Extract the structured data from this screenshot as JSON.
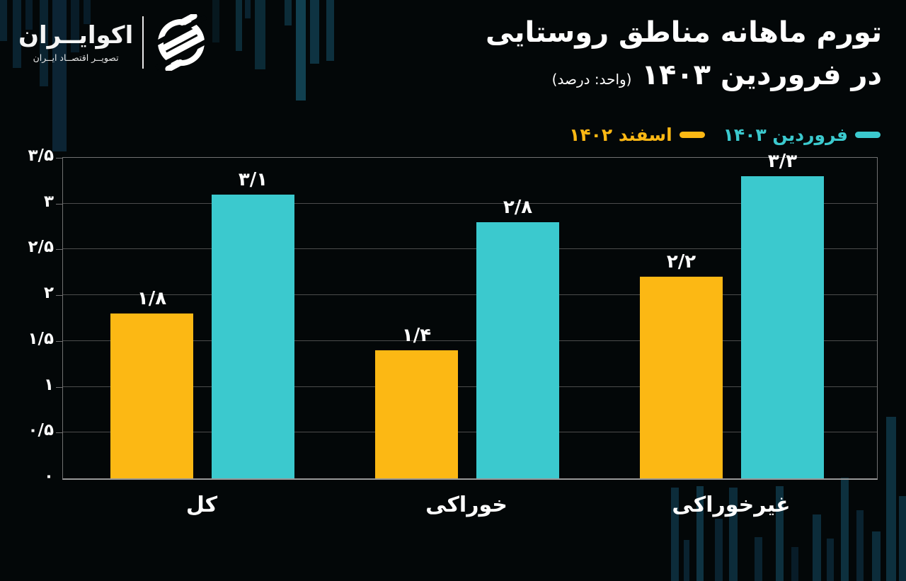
{
  "brand": {
    "name": "اکوایــران",
    "tagline": "تصویــر اقتصــاد ایــران",
    "logo_icon": "ecoiran-globe-icon"
  },
  "header": {
    "title_line1": "تورم ماهانه مناطق روستایی",
    "title_line2": "در فروردین ۱۴۰۳",
    "unit_note": "(واحد: درصد)"
  },
  "colors": {
    "background": "#030708",
    "series_current": "#3bc9ce",
    "series_previous": "#fcb814",
    "text": "#ffffff",
    "gridline": "#4c4c4c"
  },
  "chart_data": {
    "type": "bar",
    "title": "تورم ماهانه مناطق روستایی در فروردین ۱۴۰۳",
    "unit": "درصد",
    "categories": [
      "کل",
      "خوراکی",
      "غیرخوراکی"
    ],
    "series": [
      {
        "name": "اسفند ۱۴۰۲",
        "color": "#fcb814",
        "values": [
          1.8,
          1.4,
          2.2
        ],
        "value_labels": [
          "۱/۸",
          "۱/۴",
          "۲/۲"
        ]
      },
      {
        "name": "فروردین ۱۴۰۳",
        "color": "#3bc9ce",
        "values": [
          3.1,
          2.8,
          3.3
        ],
        "value_labels": [
          "۳/۱",
          "۲/۸",
          "۳/۳"
        ]
      }
    ],
    "xlabel": "",
    "ylabel": "",
    "ylim": [
      0,
      3.5
    ],
    "yticks": [
      0,
      0.5,
      1,
      1.5,
      2,
      2.5,
      3,
      3.5
    ],
    "ytick_labels": [
      "۰",
      "۰/۵",
      "۱",
      "۱/۵",
      "۲",
      "۲/۵",
      "۳",
      "۳/۵"
    ],
    "grid": true,
    "legend_position": "top-right",
    "legend_order_note": "cyan (فروردین ۱۴۰۳) shown first on the right, yellow (اسفند ۱۴۰۲) to its left"
  }
}
